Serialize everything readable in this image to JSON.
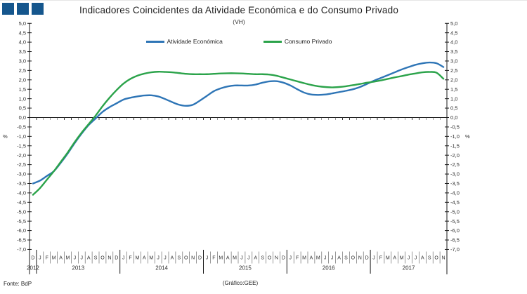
{
  "header": {
    "title": "Indicadores Coincidentes da Atividade Económica e do Consumo Privado",
    "subtitle": "(VH)"
  },
  "brand": {
    "square_color": "#15568D",
    "square_count": 3
  },
  "legend": [
    {
      "label": "Atividade Económica",
      "color": "#2E75B6"
    },
    {
      "label": "Consumo Privado",
      "color": "#2BA34A"
    }
  ],
  "footer": {
    "source": "Fonte: BdP",
    "credit": "(Gráfico:GEE)"
  },
  "chart_data": {
    "type": "line",
    "title": "Indicadores Coincidentes da Atividade Económica e do Consumo Privado",
    "subtitle": "(VH)",
    "ylabel": "%",
    "ylim": [
      -7.0,
      5.0
    ],
    "ytick_step": 0.5,
    "grid": false,
    "legend_position": "top",
    "decimal_separator": ",",
    "percent_label_at": -1.0,
    "categories": [
      "D",
      "J",
      "F",
      "M",
      "A",
      "M",
      "J",
      "J",
      "A",
      "S",
      "O",
      "N",
      "D",
      "J",
      "F",
      "M",
      "A",
      "M",
      "J",
      "J",
      "A",
      "S",
      "O",
      "N",
      "D",
      "J",
      "F",
      "M",
      "A",
      "M",
      "J",
      "J",
      "A",
      "S",
      "O",
      "N",
      "D",
      "J",
      "F",
      "M",
      "A",
      "M",
      "J",
      "J",
      "A",
      "S",
      "O",
      "N",
      "D",
      "J",
      "F",
      "M",
      "A",
      "M",
      "J",
      "J",
      "A",
      "S",
      "O",
      "N"
    ],
    "year_groups": [
      {
        "label": "2012",
        "from": 0,
        "to": 0
      },
      {
        "label": "2013",
        "from": 1,
        "to": 12
      },
      {
        "label": "2014",
        "from": 13,
        "to": 24
      },
      {
        "label": "2015",
        "from": 25,
        "to": 36
      },
      {
        "label": "2016",
        "from": 37,
        "to": 48
      },
      {
        "label": "2017",
        "from": 49,
        "to": 59
      }
    ],
    "series": [
      {
        "name": "Atividade Económica",
        "color": "#2E75B6",
        "values": [
          -3.5,
          -3.35,
          -3.1,
          -2.85,
          -2.4,
          -1.9,
          -1.35,
          -0.85,
          -0.4,
          -0.05,
          0.3,
          0.55,
          0.75,
          0.95,
          1.05,
          1.12,
          1.17,
          1.18,
          1.12,
          0.98,
          0.82,
          0.68,
          0.62,
          0.68,
          0.9,
          1.15,
          1.4,
          1.55,
          1.65,
          1.7,
          1.7,
          1.7,
          1.75,
          1.85,
          1.92,
          1.93,
          1.85,
          1.7,
          1.5,
          1.32,
          1.22,
          1.2,
          1.22,
          1.28,
          1.35,
          1.42,
          1.5,
          1.62,
          1.78,
          1.95,
          2.1,
          2.25,
          2.4,
          2.55,
          2.68,
          2.8,
          2.88,
          2.92,
          2.88,
          2.68
        ]
      },
      {
        "name": "Consumo Privado",
        "color": "#2BA34A",
        "values": [
          -4.1,
          -3.75,
          -3.3,
          -2.85,
          -2.35,
          -1.85,
          -1.3,
          -0.8,
          -0.35,
          0.1,
          0.6,
          1.05,
          1.45,
          1.8,
          2.05,
          2.22,
          2.33,
          2.4,
          2.43,
          2.42,
          2.4,
          2.36,
          2.32,
          2.3,
          2.3,
          2.3,
          2.32,
          2.34,
          2.35,
          2.35,
          2.34,
          2.32,
          2.3,
          2.3,
          2.28,
          2.22,
          2.12,
          2.02,
          1.92,
          1.82,
          1.73,
          1.66,
          1.62,
          1.6,
          1.62,
          1.66,
          1.72,
          1.78,
          1.85,
          1.9,
          1.97,
          2.05,
          2.13,
          2.2,
          2.28,
          2.34,
          2.4,
          2.42,
          2.38,
          2.06
        ]
      }
    ]
  }
}
